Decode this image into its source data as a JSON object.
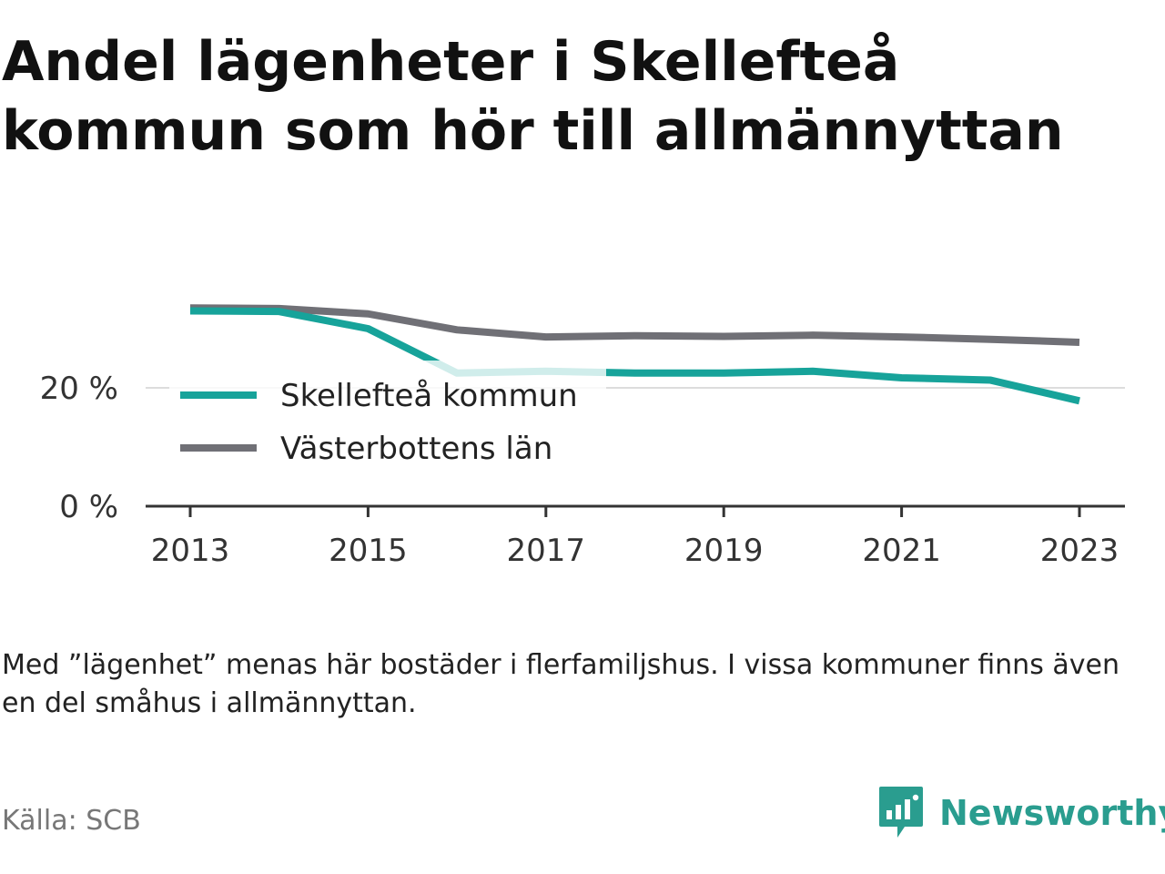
{
  "title": "Andel lägenheter i Skellefteå kommun som hör till allmännyttan",
  "note": "Med ”lägenhet” menas här bostäder i flerfamiljshus. I vissa kommuner finns även en del småhus i allmännyttan.",
  "source": "Källa: SCB",
  "brand": {
    "name": "Newsworthy",
    "icon": "newsworthy-logo-icon",
    "color": "#2a9d8f"
  },
  "chart_data": {
    "type": "line",
    "title": "Andel lägenheter i Skellefteå kommun som hör till allmännyttan",
    "xlabel": "",
    "ylabel": "",
    "x": [
      2013,
      2014,
      2015,
      2016,
      2017,
      2018,
      2019,
      2020,
      2021,
      2022,
      2023
    ],
    "xticks": [
      "2013",
      "2015",
      "2017",
      "2019",
      "2021",
      "2023"
    ],
    "yticks": [
      {
        "value": 0,
        "label": "0 %"
      },
      {
        "value": 20,
        "label": "20 %"
      }
    ],
    "ylim": [
      0,
      35
    ],
    "grid": "horizontal",
    "legend": "inside, left",
    "series": [
      {
        "name": "Skellefteå kommun",
        "color": "#17a39a",
        "values": [
          33.0,
          32.9,
          30.0,
          22.5,
          22.8,
          22.5,
          22.5,
          22.8,
          21.7,
          21.3,
          17.8
        ]
      },
      {
        "name": "Västerbottens län",
        "color": "#707076",
        "values": [
          33.5,
          33.4,
          32.5,
          29.8,
          28.6,
          28.8,
          28.7,
          28.9,
          28.6,
          28.2,
          27.7
        ]
      }
    ]
  }
}
